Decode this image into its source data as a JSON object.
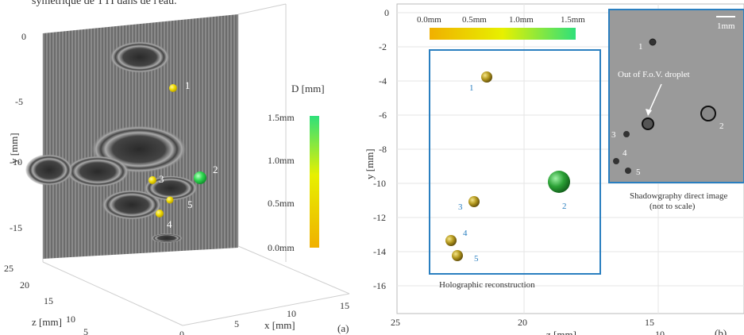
{
  "caption_top": "symétrique de TTI dans de l'eau.",
  "panel_a": {
    "letter": "(a)",
    "y_axis_label": "y [mm]",
    "z_axis_label": "z [mm]",
    "x_axis_label": "x [mm]",
    "y_ticks": [
      "0",
      "-5",
      "-10",
      "-15"
    ],
    "z_ticks": [
      "25",
      "20",
      "15",
      "10",
      "5"
    ],
    "x_ticks": [
      "0",
      "5",
      "10",
      "15"
    ],
    "colorbar_title": "D [mm]",
    "colorbar_ticks": [
      "1.5mm",
      "1.0mm",
      "0.5mm",
      "0.0mm"
    ],
    "colorbar_colors": [
      "#2fe07a",
      "#f4e800",
      "#f0b500"
    ],
    "droplet_labels": [
      "1",
      "2",
      "3",
      "4",
      "5"
    ]
  },
  "panel_b": {
    "letter": "(b)",
    "y_axis_label": "y [mm]",
    "z_axis_label": "z [mm]",
    "y_ticks": [
      "0",
      "-2",
      "-4",
      "-6",
      "-8",
      "-10",
      "-12",
      "-14",
      "-16"
    ],
    "z_ticks": [
      "25",
      "20",
      "15",
      "10"
    ],
    "colorbar_ticks": [
      "0.0mm",
      "0.5mm",
      "1.0mm",
      "1.5mm"
    ],
    "holo_caption": "Holographic reconstruction",
    "droplet_labels": [
      "1",
      "2",
      "3",
      "4",
      "5"
    ],
    "shadow": {
      "scale_label": "1mm",
      "annotation": "Out of F.o.V. droplet",
      "caption_line1": "Shadowgraphy direct image",
      "caption_line2": "(not to scale)",
      "droplet_labels": [
        "1",
        "2",
        "3",
        "4",
        "5"
      ]
    }
  }
}
